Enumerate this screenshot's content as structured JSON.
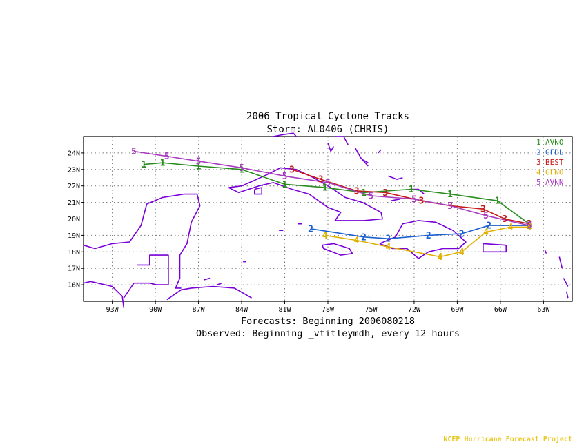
{
  "chart_data": {
    "type": "line",
    "title": "2006 Tropical Cyclone Tracks",
    "subtitle": "Storm: AL0406 (CHRIS)",
    "x_ticks": [
      "93W",
      "90W",
      "87W",
      "84W",
      "81W",
      "78W",
      "75W",
      "72W",
      "69W",
      "66W",
      "63W"
    ],
    "x_tick_values": [
      -93,
      -90,
      -87,
      -84,
      -81,
      -78,
      -75,
      -72,
      -69,
      -66,
      -63
    ],
    "y_ticks": [
      "24N",
      "23N",
      "22N",
      "21N",
      "20N",
      "19N",
      "18N",
      "17N",
      "16N"
    ],
    "y_tick_values": [
      24,
      23,
      22,
      21,
      20,
      19,
      18,
      17,
      16
    ],
    "xlim": [
      -95,
      -61
    ],
    "ylim": [
      15,
      25
    ],
    "grid": true,
    "legend_position": "top-right",
    "series": [
      {
        "marker": "1",
        "name": "AVNO",
        "color": "#2a8c1e",
        "x": [
          -90.8,
          -89.5,
          -87.0,
          -84.0,
          -81.0,
          -78.2,
          -75.5,
          -72.2,
          -69.5,
          -66.2,
          -64.0
        ],
        "y": [
          23.3,
          23.4,
          23.2,
          23.0,
          22.1,
          21.9,
          21.6,
          21.8,
          21.5,
          21.1,
          19.7
        ]
      },
      {
        "marker": "2",
        "name": "GFDL",
        "color": "#1a5fd0",
        "x": [
          -79.2,
          -75.5,
          -73.8,
          -71.0,
          -68.7,
          -66.8,
          -64.0
        ],
        "y": [
          19.4,
          18.9,
          18.8,
          19.0,
          19.1,
          19.6,
          19.6
        ]
      },
      {
        "marker": "3",
        "name": "BEST",
        "color": "#c41a1a",
        "x": [
          -80.5,
          -78.5,
          -76.0,
          -74.0,
          -71.5,
          -69.5,
          -67.2,
          -65.7,
          -64.0
        ],
        "y": [
          23.0,
          22.4,
          21.7,
          21.6,
          21.1,
          20.8,
          20.6,
          20.0,
          19.7
        ]
      },
      {
        "marker": "4",
        "name": "GFNO",
        "color": "#e0b000",
        "x": [
          -78.2,
          -76.0,
          -73.8,
          -70.2,
          -68.7,
          -67.0,
          -65.3,
          -64.0
        ],
        "y": [
          19.0,
          18.7,
          18.3,
          17.7,
          18.0,
          19.2,
          19.5,
          19.5
        ]
      },
      {
        "marker": "5",
        "name": "AVNN",
        "color": "#a83cc0",
        "x": [
          -91.5,
          -89.2,
          -87.0,
          -84.0,
          -81.0,
          -78.0,
          -75.0,
          -72.0,
          -69.5,
          -67.0,
          -64.0
        ],
        "y": [
          24.1,
          23.8,
          23.5,
          23.1,
          22.6,
          22.2,
          21.4,
          21.2,
          20.8,
          20.2,
          19.6
        ]
      }
    ]
  },
  "captions": {
    "forecasts": "Forecasts: Beginning 2006080218",
    "observed": "Observed: Beginning _vtitleymdh, every 12 hours",
    "credit": "NCEP Hurricane Forecast Project"
  },
  "map": {
    "land_outline_color": "#7a00d8"
  }
}
